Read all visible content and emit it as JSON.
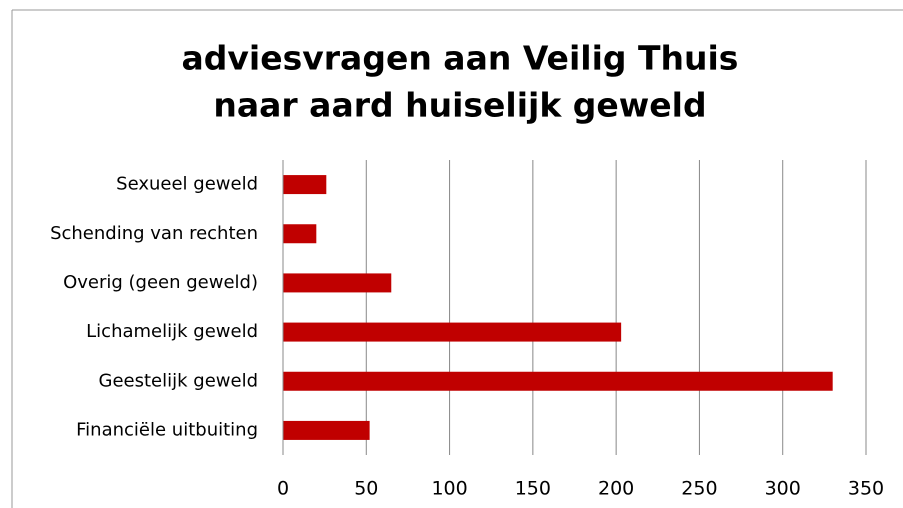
{
  "chart_data": {
    "type": "bar",
    "orientation": "horizontal",
    "title": [
      "adviesvragen aan Veilig Thuis",
      "naar aard  huiselijk geweld"
    ],
    "categories": [
      "Sexueel geweld",
      "Schending van rechten",
      "Overig (geen geweld)",
      "Lichamelijk geweld",
      "Geestelijk geweld",
      "Financiële uitbuiting"
    ],
    "values": [
      26,
      20,
      65,
      203,
      330,
      52
    ],
    "color": "#c00000",
    "xlim": [
      0,
      350
    ],
    "xticks": [
      0,
      50,
      100,
      150,
      200,
      250,
      300,
      350
    ],
    "grid": true
  }
}
